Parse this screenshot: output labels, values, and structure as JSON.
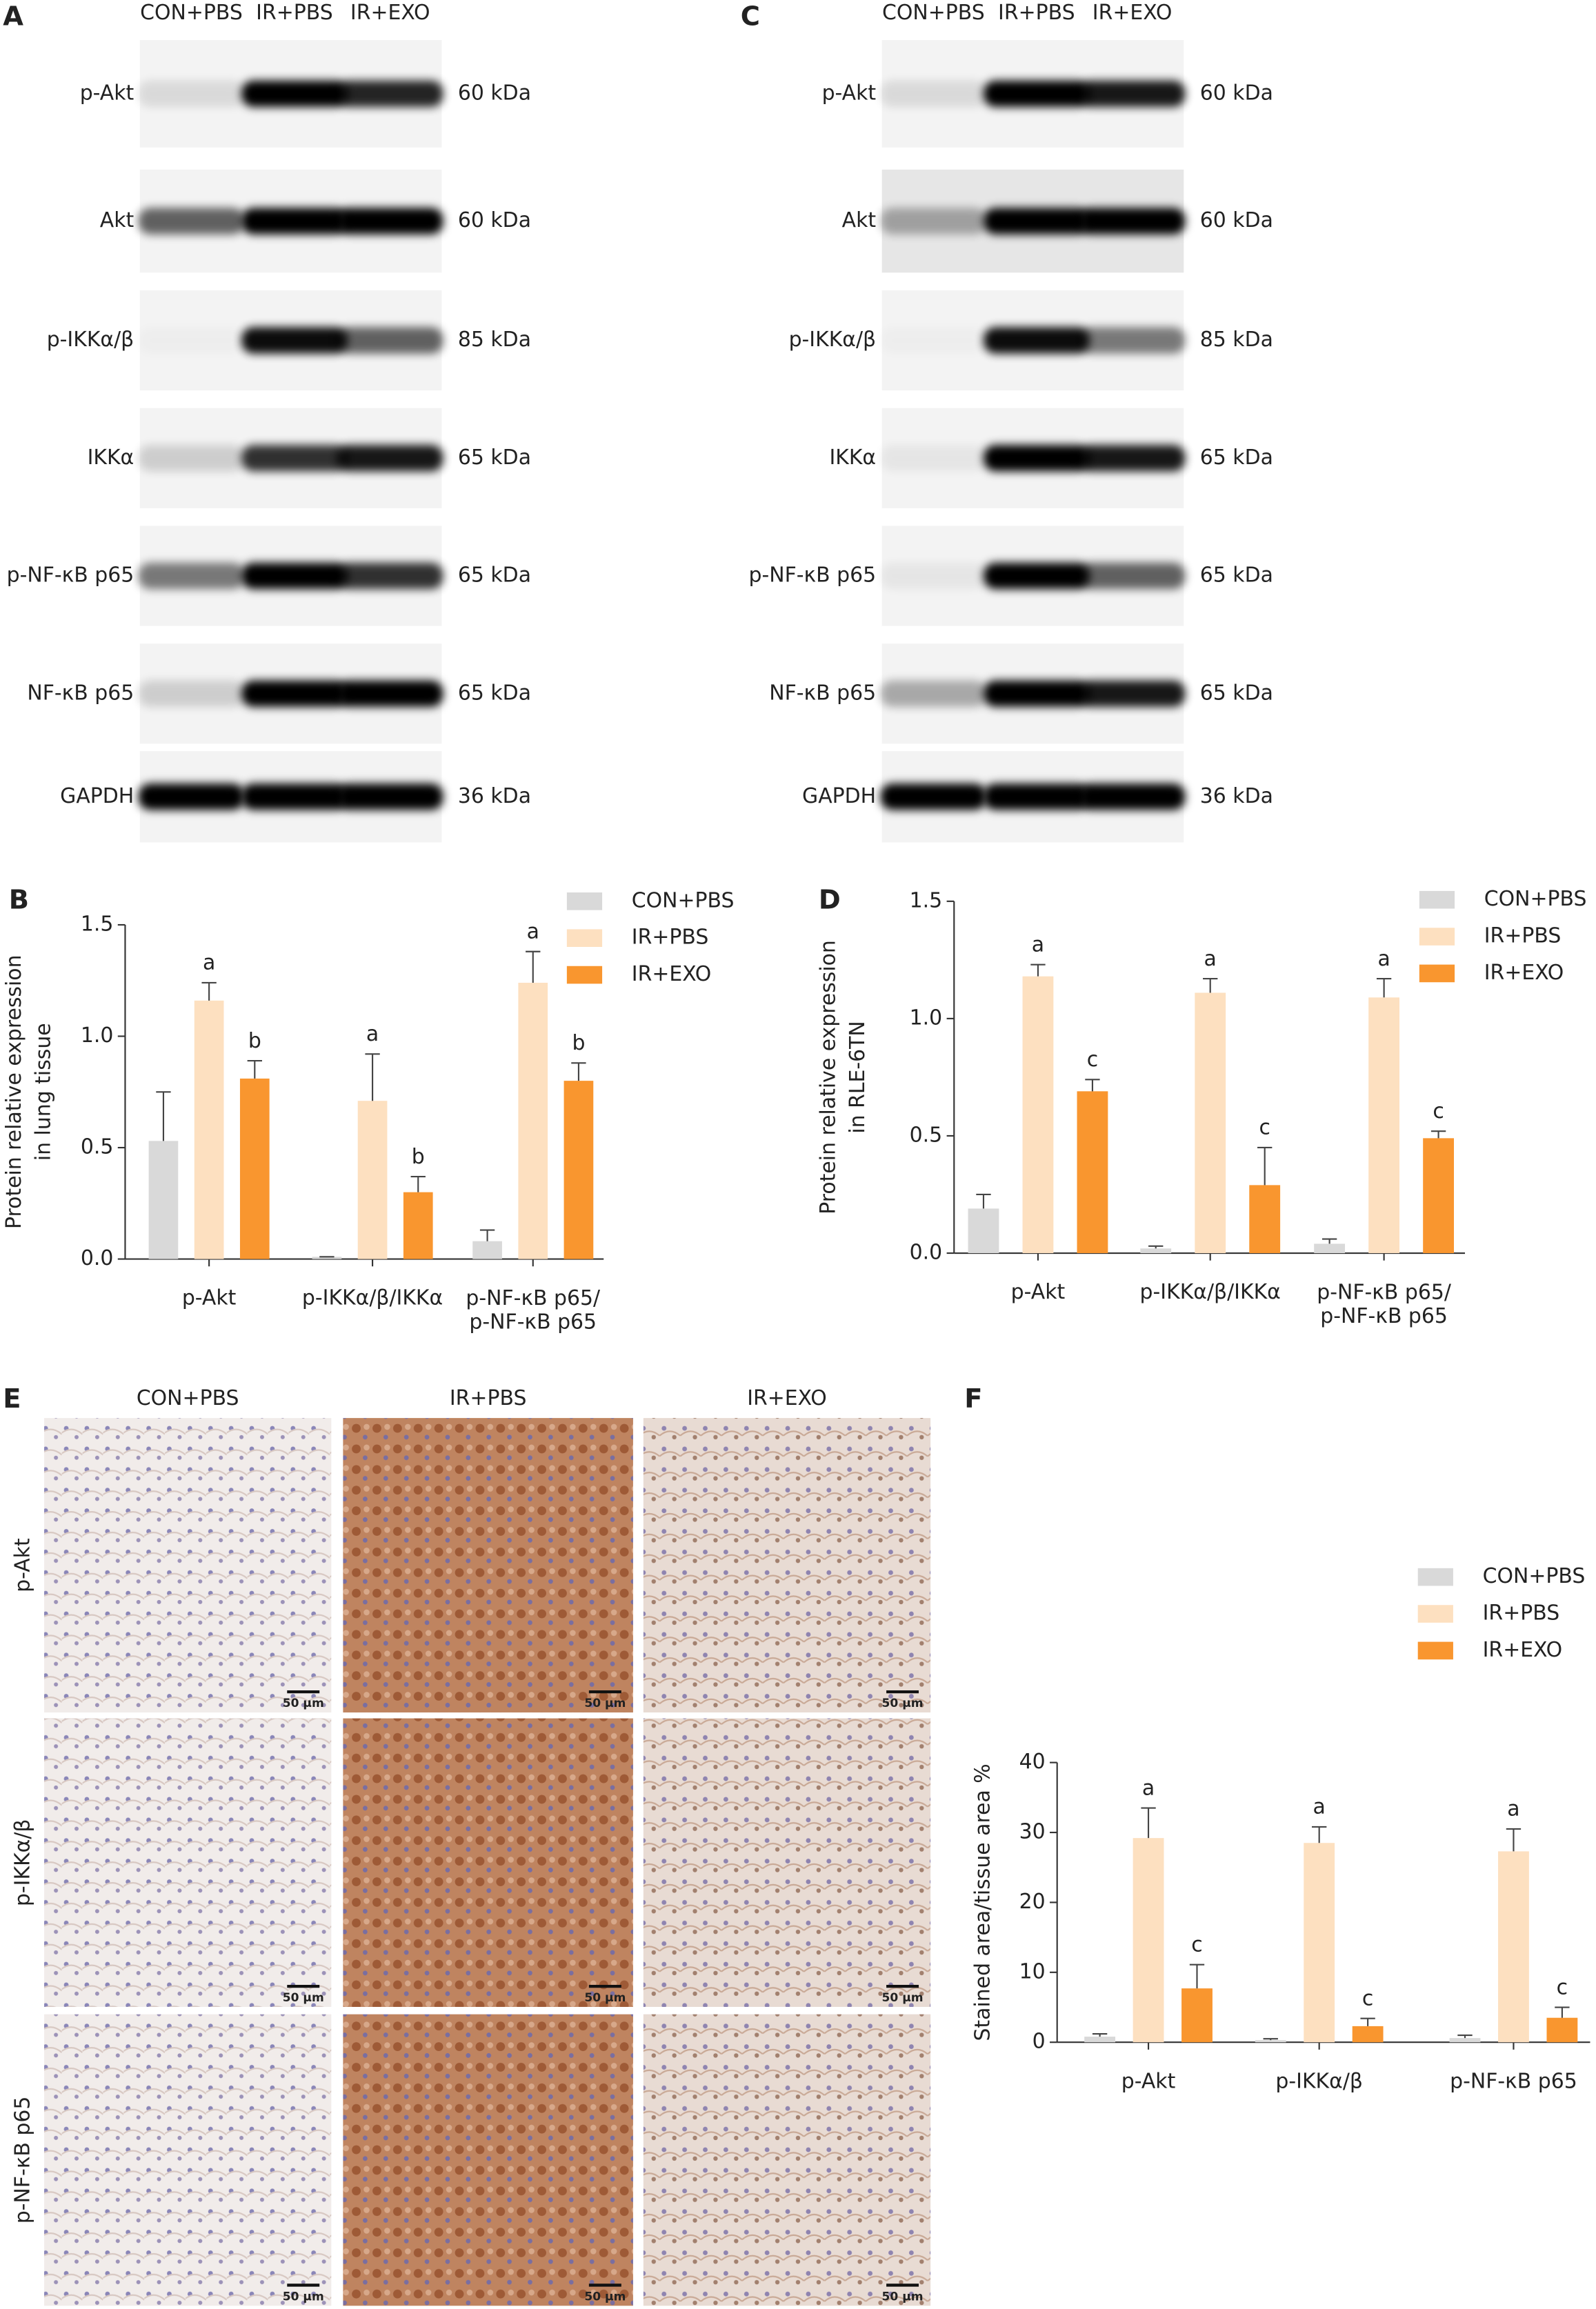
{
  "blots": [
    {
      "panel": "A",
      "lanes": [
        "CON+PBS",
        "IR+PBS",
        "IR+EXO"
      ],
      "rows": [
        {
          "protein": "p-Akt",
          "size": "60 kDa"
        },
        {
          "protein": "Akt",
          "size": "60 kDa"
        },
        {
          "protein": "p-IKKα/β",
          "size": "85 kDa"
        },
        {
          "protein": "IKKα",
          "size": "65 kDa"
        },
        {
          "protein": "p-NF-κB p65",
          "size": "65 kDa"
        },
        {
          "protein": "NF-κB p65",
          "size": "65 kDa"
        },
        {
          "protein": "GAPDH",
          "size": "36 kDa"
        }
      ]
    },
    {
      "panel": "C",
      "lanes": [
        "CON+PBS",
        "IR+PBS",
        "IR+EXO"
      ],
      "rows": [
        {
          "protein": "p-Akt",
          "size": "60 kDa"
        },
        {
          "protein": "Akt",
          "size": "60 kDa"
        },
        {
          "protein": "p-IKKα/β",
          "size": "85 kDa"
        },
        {
          "protein": "IKKα",
          "size": "65 kDa"
        },
        {
          "protein": "p-NF-κB p65",
          "size": "65 kDa"
        },
        {
          "protein": "NF-κB p65",
          "size": "65 kDa"
        },
        {
          "protein": "GAPDH",
          "size": "36 kDa"
        }
      ]
    }
  ],
  "chart_data": [
    {
      "panel": "B",
      "type": "bar",
      "ylabel": [
        "Protein relative expression",
        "in lung tissue"
      ],
      "categories": [
        "p-Akt",
        "p-IKKα/β/IKKα",
        "p-NF-κB p65/\np-NF-κB p65"
      ],
      "ylim": [
        0,
        1.5
      ],
      "yticks": [
        {
          "value": 0,
          "label": "0.0"
        },
        0.5,
        {
          "value": 1,
          "label": "1.0"
        },
        1.5
      ],
      "series": [
        {
          "name": "CON+PBS",
          "color": "#d9d9d9",
          "values": [
            0.53,
            0.01,
            0.08
          ],
          "errors": [
            0.22,
            0,
            0.05
          ],
          "sig_labels": [
            null,
            null,
            null
          ]
        },
        {
          "name": "IR+PBS",
          "color": "#fde0c0",
          "values": [
            1.16,
            0.71,
            1.24
          ],
          "errors": [
            0.08,
            0.21,
            0.14
          ],
          "sig_labels": [
            "a",
            "a",
            "a"
          ]
        },
        {
          "name": "IR+EXO",
          "color": "#f9962f",
          "values": [
            0.81,
            0.3,
            0.8
          ],
          "errors": [
            0.08,
            0.07,
            0.08
          ],
          "sig_labels": [
            "b",
            "b",
            "b"
          ]
        }
      ]
    },
    {
      "panel": "D",
      "type": "bar",
      "ylabel": [
        "Protein relative expression",
        "in RLE-6TN"
      ],
      "categories": [
        "p-Akt",
        "p-IKKα/β/IKKα",
        "p-NF-κB p65/\np-NF-κB p65"
      ],
      "ylim": [
        0,
        1.5
      ],
      "yticks": [
        {
          "value": 0,
          "label": "0.0"
        },
        0.5,
        {
          "value": 1,
          "label": "1.0"
        },
        1.5
      ],
      "series": [
        {
          "name": "CON+PBS",
          "color": "#d9d9d9",
          "values": [
            0.19,
            0.02,
            0.04
          ],
          "errors": [
            0.06,
            0.01,
            0.02
          ],
          "sig_labels": [
            null,
            null,
            null
          ]
        },
        {
          "name": "IR+PBS",
          "color": "#fde0c0",
          "values": [
            1.18,
            1.11,
            1.09
          ],
          "errors": [
            0.05,
            0.06,
            0.08
          ],
          "sig_labels": [
            "a",
            "a",
            "a"
          ]
        },
        {
          "name": "IR+EXO",
          "color": "#f9962f",
          "values": [
            0.69,
            0.29,
            0.49
          ],
          "errors": [
            0.05,
            0.16,
            0.03
          ],
          "sig_labels": [
            "c",
            "c",
            "c"
          ]
        }
      ]
    },
    {
      "panel": "F",
      "type": "bar",
      "ylabel": [
        "Stained area/tissue area %"
      ],
      "categories": [
        "p-Akt",
        "p-IKKα/β",
        "p-NF-κB p65"
      ],
      "ylim": [
        0,
        40
      ],
      "yticks": [
        0,
        10,
        20,
        30,
        40
      ],
      "series": [
        {
          "name": "CON+PBS",
          "color": "#d9d9d9",
          "values": [
            0.8,
            0.3,
            0.6
          ],
          "errors": [
            0.4,
            0.2,
            0.4
          ],
          "sig_labels": [
            null,
            null,
            null
          ]
        },
        {
          "name": "IR+PBS",
          "color": "#fde0c0",
          "values": [
            29.2,
            28.5,
            27.3
          ],
          "errors": [
            4.3,
            2.3,
            3.2
          ],
          "sig_labels": [
            "a",
            "a",
            "a"
          ]
        },
        {
          "name": "IR+EXO",
          "color": "#f9962f",
          "values": [
            7.7,
            2.3,
            3.5
          ],
          "errors": [
            3.4,
            1.1,
            1.5
          ],
          "sig_labels": [
            "c",
            "c",
            "c"
          ]
        }
      ]
    }
  ],
  "ihc": {
    "panel": "E",
    "columns": [
      "CON+PBS",
      "IR+PBS",
      "IR+EXO"
    ],
    "rows": [
      "p-Akt",
      "p-IKKα/β",
      "p-NF-κB p65"
    ],
    "scale_bar": "50 μm"
  }
}
